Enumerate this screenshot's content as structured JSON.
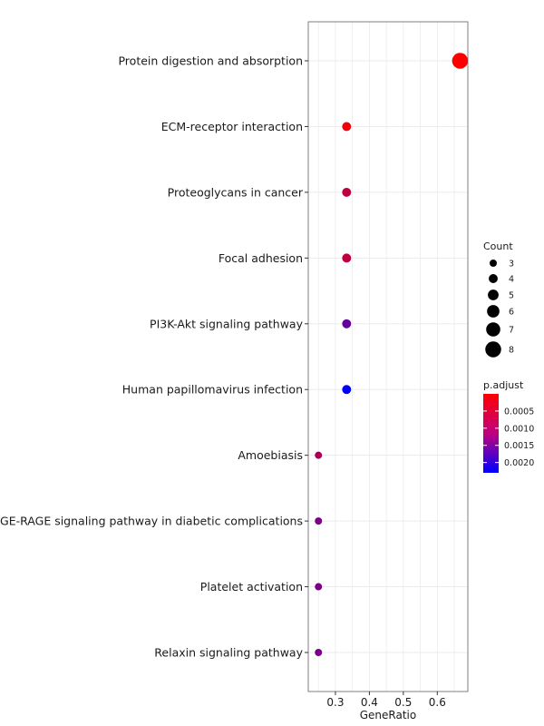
{
  "chart_data": {
    "type": "scatter",
    "xlabel": "GeneRatio",
    "ylabel": "",
    "title": "",
    "xlim": [
      0.22,
      0.69
    ],
    "xticks": [
      0.3,
      0.4,
      0.5,
      0.6
    ],
    "xtick_labels": [
      "0.3",
      "0.4",
      "0.5",
      "0.6"
    ],
    "grid": true,
    "legend_placement": "right",
    "points": [
      {
        "term": "Protein digestion and absorption",
        "gene_ratio": 0.667,
        "count": 8,
        "p_adjust": 0.0
      },
      {
        "term": "ECM-receptor interaction",
        "gene_ratio": 0.333,
        "count": 4,
        "p_adjust": 0.0001
      },
      {
        "term": "Proteoglycans in cancer",
        "gene_ratio": 0.333,
        "count": 4,
        "p_adjust": 0.0006
      },
      {
        "term": "Focal adhesion",
        "gene_ratio": 0.333,
        "count": 4,
        "p_adjust": 0.0006
      },
      {
        "term": "PI3K-Akt signaling pathway",
        "gene_ratio": 0.333,
        "count": 4,
        "p_adjust": 0.0014
      },
      {
        "term": "Human papillomavirus infection",
        "gene_ratio": 0.333,
        "count": 4,
        "p_adjust": 0.0023
      },
      {
        "term": "Amoebiasis",
        "gene_ratio": 0.25,
        "count": 3,
        "p_adjust": 0.0008
      },
      {
        "term": "AGE-RAGE signaling pathway in diabetic complications",
        "gene_ratio": 0.25,
        "count": 3,
        "p_adjust": 0.0012
      },
      {
        "term": "Platelet activation",
        "gene_ratio": 0.25,
        "count": 3,
        "p_adjust": 0.0012
      },
      {
        "term": "Relaxin signaling pathway",
        "gene_ratio": 0.25,
        "count": 3,
        "p_adjust": 0.0012
      }
    ],
    "size_legend": {
      "title": "Count",
      "entries": [
        {
          "count": 3,
          "label": "3"
        },
        {
          "count": 4,
          "label": "4"
        },
        {
          "count": 5,
          "label": "5"
        },
        {
          "count": 6,
          "label": "6"
        },
        {
          "count": 7,
          "label": "7"
        },
        {
          "count": 8,
          "label": "8"
        }
      ]
    },
    "color_legend": {
      "title": "p.adjust",
      "min": 0.0,
      "max": 0.0023,
      "ticks": [
        {
          "value": 0.0005,
          "label": "0.0005"
        },
        {
          "value": 0.001,
          "label": "0.0010"
        },
        {
          "value": 0.0015,
          "label": "0.0015"
        },
        {
          "value": 0.002,
          "label": "0.0020"
        }
      ],
      "low_color": "#ff0000",
      "high_color": "#0000ff"
    }
  }
}
